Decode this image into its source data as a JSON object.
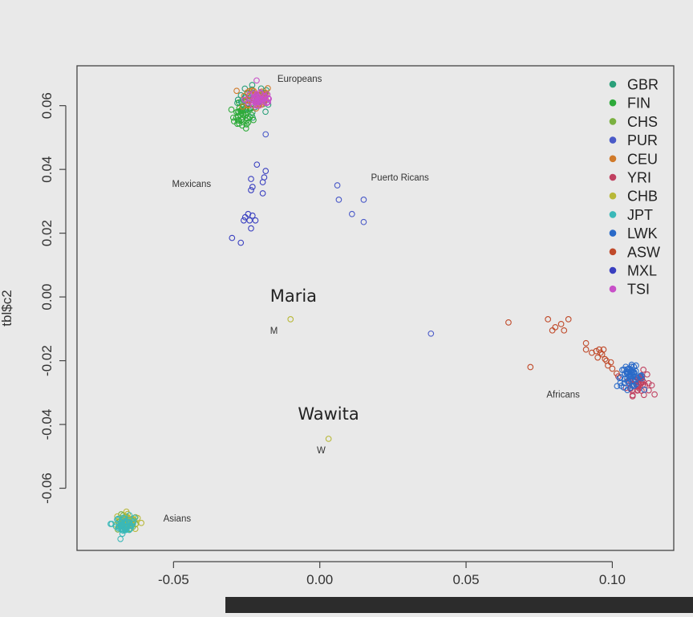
{
  "chart_data": {
    "type": "scatter",
    "title": "",
    "xlabel": "",
    "ylabel": "tbl$c2",
    "xlim": [
      -0.083,
      0.121
    ],
    "ylim": [
      -0.0795,
      0.0725
    ],
    "x_ticks": [
      -0.05,
      0.0,
      0.05,
      0.1
    ],
    "x_tick_labels": [
      "-0.05",
      "0.00",
      "0.05",
      "0.10"
    ],
    "y_ticks": [
      -0.06,
      -0.04,
      -0.02,
      0.0,
      0.02,
      0.04,
      0.06
    ],
    "y_tick_labels": [
      "-0.06",
      "-0.04",
      "-0.02",
      "0.00",
      "0.02",
      "0.04",
      "0.06"
    ],
    "grid": false,
    "legend_position": "top-right",
    "series": [
      {
        "name": "GBR",
        "color": "#2aa07a",
        "clusters": [
          {
            "cx": -0.022,
            "cy": 0.062,
            "sx": 0.003,
            "sy": 0.0022,
            "n": 40
          }
        ]
      },
      {
        "name": "FIN",
        "color": "#2eaa3a",
        "clusters": [
          {
            "cx": -0.0265,
            "cy": 0.0565,
            "sx": 0.0018,
            "sy": 0.0018,
            "n": 40
          }
        ]
      },
      {
        "name": "CHS",
        "color": "#7ab040",
        "clusters": [
          {
            "cx": -0.066,
            "cy": -0.071,
            "sx": 0.0016,
            "sy": 0.0013,
            "n": 35
          }
        ]
      },
      {
        "name": "PUR",
        "color": "#4a5ac8",
        "points": [
          [
            -0.0185,
            0.051
          ],
          [
            0.006,
            0.035
          ],
          [
            0.0065,
            0.0305
          ],
          [
            0.011,
            0.026
          ],
          [
            0.015,
            0.0305
          ],
          [
            0.015,
            0.0235
          ],
          [
            0.038,
            -0.0115
          ]
        ]
      },
      {
        "name": "CEU",
        "color": "#d07a2a",
        "clusters": [
          {
            "cx": -0.022,
            "cy": 0.0625,
            "sx": 0.0028,
            "sy": 0.002,
            "n": 40
          }
        ]
      },
      {
        "name": "YRI",
        "color": "#c04060",
        "clusters": [
          {
            "cx": 0.109,
            "cy": -0.027,
            "sx": 0.002,
            "sy": 0.0018,
            "n": 45
          }
        ]
      },
      {
        "name": "CHB",
        "color": "#b8b838",
        "clusters": [
          {
            "cx": -0.066,
            "cy": -0.0705,
            "sx": 0.0018,
            "sy": 0.0014,
            "n": 35
          }
        ],
        "points": [
          [
            -0.01,
            -0.007
          ],
          [
            0.003,
            -0.0445
          ]
        ]
      },
      {
        "name": "JPT",
        "color": "#3ab8b8",
        "clusters": [
          {
            "cx": -0.0665,
            "cy": -0.0715,
            "sx": 0.0016,
            "sy": 0.0013,
            "n": 45
          }
        ],
        "points": [
          [
            -0.0715,
            -0.0712
          ]
        ]
      },
      {
        "name": "LWK",
        "color": "#2a6ac8",
        "clusters": [
          {
            "cx": 0.106,
            "cy": -0.025,
            "sx": 0.0022,
            "sy": 0.0016,
            "n": 55
          }
        ]
      },
      {
        "name": "ASW",
        "color": "#c04a2a",
        "points": [
          [
            0.0645,
            -0.008
          ],
          [
            0.078,
            -0.007
          ],
          [
            0.0805,
            -0.0095
          ],
          [
            0.0825,
            -0.0085
          ],
          [
            0.0835,
            -0.0105
          ],
          [
            0.085,
            -0.007
          ],
          [
            0.0795,
            -0.0105
          ],
          [
            0.072,
            -0.022
          ],
          [
            0.091,
            -0.0145
          ],
          [
            0.091,
            -0.0165
          ],
          [
            0.093,
            -0.0175
          ],
          [
            0.0945,
            -0.017
          ],
          [
            0.095,
            -0.019
          ],
          [
            0.096,
            -0.0175
          ],
          [
            0.0955,
            -0.0165
          ],
          [
            0.097,
            -0.0165
          ],
          [
            0.0975,
            -0.0195
          ],
          [
            0.0985,
            -0.0215
          ],
          [
            0.0995,
            -0.0205
          ],
          [
            0.1,
            -0.0225
          ],
          [
            0.1015,
            -0.024
          ],
          [
            0.0965,
            -0.018
          ],
          [
            0.098,
            -0.02
          ]
        ]
      },
      {
        "name": "MXL",
        "color": "#3a40c0",
        "points": [
          [
            -0.0215,
            0.0415
          ],
          [
            -0.0185,
            0.0395
          ],
          [
            -0.019,
            0.0375
          ],
          [
            -0.0235,
            0.037
          ],
          [
            -0.0195,
            0.036
          ],
          [
            -0.023,
            0.0345
          ],
          [
            -0.0235,
            0.0335
          ],
          [
            -0.0195,
            0.0325
          ],
          [
            -0.0245,
            0.026
          ],
          [
            -0.023,
            0.0255
          ],
          [
            -0.0255,
            0.025
          ],
          [
            -0.024,
            0.024
          ],
          [
            -0.022,
            0.024
          ],
          [
            -0.026,
            0.024
          ],
          [
            -0.0235,
            0.0215
          ],
          [
            -0.03,
            0.0185
          ],
          [
            -0.027,
            0.017
          ]
        ]
      },
      {
        "name": "TSI",
        "color": "#c850c8",
        "clusters": [
          {
            "cx": -0.0205,
            "cy": 0.062,
            "sx": 0.0025,
            "sy": 0.0018,
            "n": 40
          }
        ]
      }
    ],
    "annotations": [
      {
        "text": "Europeans",
        "x": -0.0145,
        "y": 0.0675,
        "size": "small"
      },
      {
        "text": "Mexicans",
        "x": -0.0505,
        "y": 0.0345,
        "size": "small"
      },
      {
        "text": "Puerto Ricans",
        "x": 0.0175,
        "y": 0.0365,
        "size": "small"
      },
      {
        "text": "Africans",
        "x": 0.0775,
        "y": -0.0315,
        "size": "small"
      },
      {
        "text": "Asians",
        "x": -0.0535,
        "y": -0.0705,
        "size": "small"
      },
      {
        "text": "Maria",
        "x": -0.017,
        "y": -0.0015,
        "size": "large"
      },
      {
        "text": "M",
        "x": -0.017,
        "y": -0.0115,
        "size": "medium"
      },
      {
        "text": "Wawita",
        "x": -0.0075,
        "y": -0.0385,
        "size": "large"
      },
      {
        "text": "W",
        "x": -0.001,
        "y": -0.049,
        "size": "medium"
      }
    ]
  }
}
